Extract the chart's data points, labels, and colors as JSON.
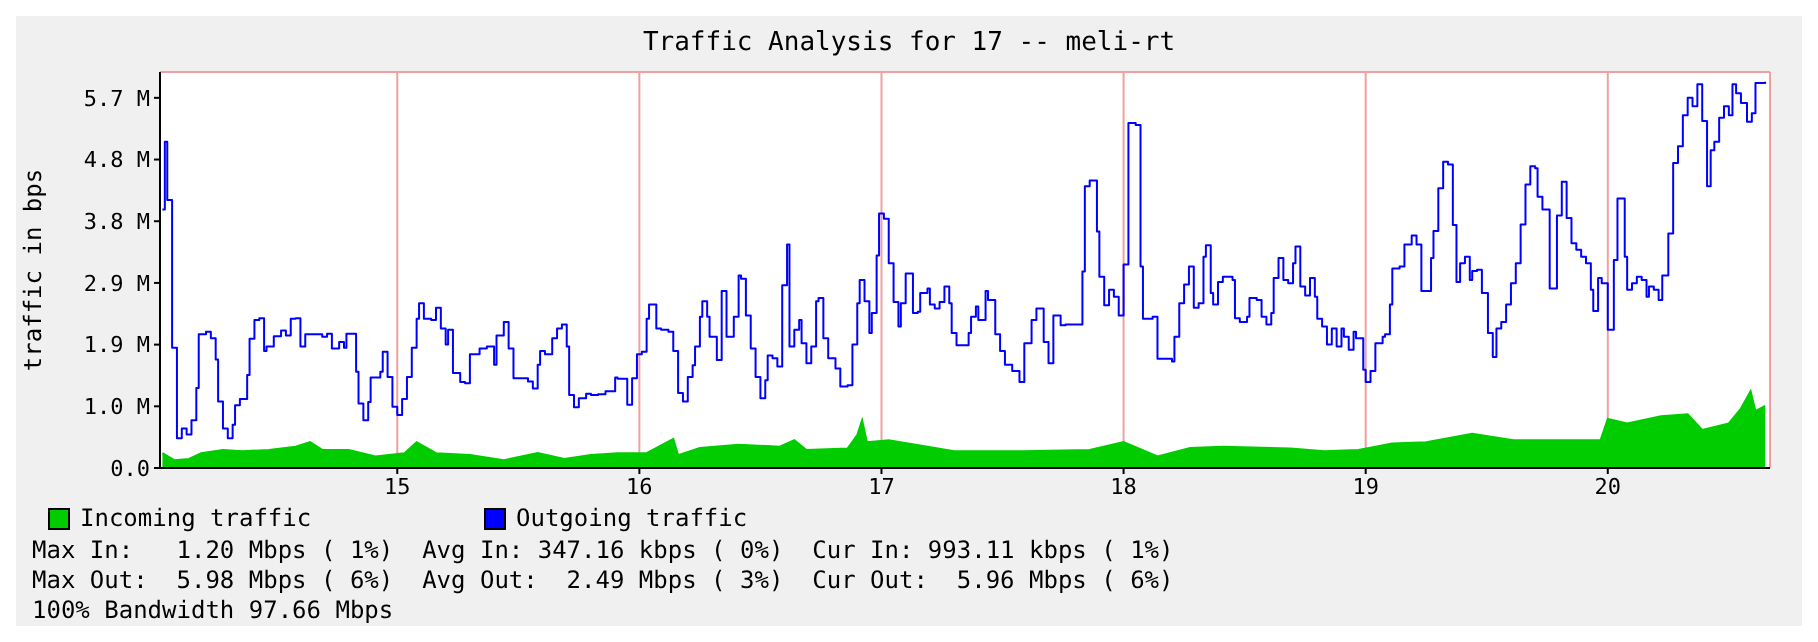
{
  "chart_data": {
    "type": "line",
    "title": "Traffic Analysis for 17 -- meli-rt",
    "ylabel": "traffic in bps",
    "xlim": [
      14.02,
      20.67
    ],
    "xticks": [
      15,
      16,
      17,
      18,
      19,
      20
    ],
    "ylim": [
      0,
      6.13
    ],
    "yticks": [
      {
        "value": 0,
        "label": "0.0"
      },
      {
        "value": 0.955,
        "label": "1.0 M"
      },
      {
        "value": 1.91,
        "label": "1.9 M"
      },
      {
        "value": 2.865,
        "label": "2.9 M"
      },
      {
        "value": 3.82,
        "label": "3.8 M"
      },
      {
        "value": 4.775,
        "label": "4.8 M"
      },
      {
        "value": 5.73,
        "label": "5.7 M"
      }
    ],
    "grid": true,
    "legend": "bottom",
    "marker": "none",
    "series": [
      {
        "name": "Incoming traffic",
        "type": "area",
        "color": "#00cc00",
        "x": [
          14.03,
          14.08,
          14.14,
          14.19,
          14.28,
          14.36,
          14.47,
          14.58,
          14.64,
          14.69,
          14.8,
          14.91,
          15.03,
          15.08,
          15.16,
          15.3,
          15.44,
          15.58,
          15.69,
          15.8,
          15.91,
          16.03,
          16.14,
          16.16,
          16.25,
          16.41,
          16.58,
          16.64,
          16.69,
          16.86,
          16.9,
          16.92,
          16.94,
          17.03,
          17.19,
          17.3,
          17.58,
          17.86,
          18,
          18.14,
          18.275,
          18.41,
          18.69,
          18.83,
          18.97,
          19.11,
          19.25,
          19.44,
          19.61,
          19.8,
          19.97,
          20,
          20.08,
          20.22,
          20.33,
          20.39,
          20.5,
          20.55,
          20.59,
          20.61,
          20.65
        ],
        "values": [
          0.23,
          0.12,
          0.14,
          0.23,
          0.28,
          0.26,
          0.28,
          0.33,
          0.4,
          0.28,
          0.28,
          0.18,
          0.23,
          0.4,
          0.23,
          0.2,
          0.12,
          0.23,
          0.14,
          0.2,
          0.23,
          0.23,
          0.45,
          0.2,
          0.31,
          0.36,
          0.33,
          0.43,
          0.28,
          0.3,
          0.51,
          0.74,
          0.4,
          0.43,
          0.33,
          0.26,
          0.26,
          0.28,
          0.4,
          0.18,
          0.31,
          0.33,
          0.3,
          0.26,
          0.28,
          0.38,
          0.4,
          0.53,
          0.43,
          0.43,
          0.43,
          0.76,
          0.69,
          0.8,
          0.83,
          0.59,
          0.69,
          0.92,
          1.19,
          0.88,
          0.96
        ]
      },
      {
        "name": "Outgoing traffic",
        "type": "step",
        "color": "#0000ff",
        "x": [
          14.03,
          14.04,
          14.05,
          14.07,
          14.09,
          14.11,
          14.13,
          14.15,
          14.17,
          14.18,
          14.21,
          14.23,
          14.25,
          14.26,
          14.28,
          14.3,
          14.32,
          14.33,
          14.35,
          14.38,
          14.39,
          14.41,
          14.43,
          14.45,
          14.46,
          14.49,
          14.52,
          14.54,
          14.56,
          14.58,
          14.6,
          14.62,
          14.66,
          14.69,
          14.71,
          14.73,
          14.76,
          14.78,
          14.79,
          14.82,
          14.83,
          14.84,
          14.86,
          14.88,
          14.89,
          14.93,
          14.94,
          14.96,
          14.98,
          15,
          15.02,
          15.04,
          15.06,
          15.08,
          15.09,
          15.11,
          15.14,
          15.16,
          15.18,
          15.2,
          15.21,
          15.23,
          15.26,
          15.28,
          15.3,
          15.34,
          15.37,
          15.4,
          15.41,
          15.44,
          15.46,
          15.48,
          15.51,
          15.54,
          15.56,
          15.58,
          15.59,
          15.61,
          15.64,
          15.66,
          15.68,
          15.7,
          15.71,
          15.73,
          15.75,
          15.78,
          15.8,
          15.83,
          15.86,
          15.9,
          15.91,
          15.95,
          15.97,
          15.99,
          16.01,
          16.03,
          16.04,
          16.07,
          16.09,
          16.12,
          16.14,
          16.16,
          16.18,
          16.2,
          16.22,
          16.23,
          16.25,
          16.26,
          16.28,
          16.29,
          16.32,
          16.34,
          16.36,
          16.39,
          16.41,
          16.42,
          16.44,
          16.46,
          16.48,
          16.5,
          16.52,
          16.53,
          16.55,
          16.57,
          16.59,
          16.61,
          16.62,
          16.64,
          16.66,
          16.67,
          16.69,
          16.71,
          16.73,
          16.74,
          16.76,
          16.78,
          16.81,
          16.83,
          16.86,
          16.88,
          16.9,
          16.91,
          16.93,
          16.95,
          16.96,
          16.98,
          16.99,
          17.01,
          17.03,
          17.05,
          17.07,
          17.08,
          17.1,
          17.13,
          17.15,
          17.16,
          17.19,
          17.2,
          17.22,
          17.24,
          17.26,
          17.28,
          17.29,
          17.31,
          17.34,
          17.36,
          17.37,
          17.39,
          17.4,
          17.43,
          17.44,
          17.47,
          17.49,
          17.51,
          17.54,
          17.57,
          17.59,
          17.62,
          17.64,
          17.67,
          17.69,
          17.71,
          17.74,
          17.76,
          17.82,
          17.83,
          17.84,
          17.86,
          17.89,
          17.9,
          17.92,
          17.94,
          17.96,
          17.98,
          18,
          18.02,
          18.05,
          18.07,
          18.08,
          18.12,
          18.14,
          18.2,
          18.21,
          18.23,
          18.25,
          18.27,
          18.29,
          18.31,
          18.33,
          18.34,
          18.36,
          18.37,
          18.39,
          18.41,
          18.45,
          18.46,
          18.48,
          18.51,
          18.52,
          18.55,
          18.57,
          18.59,
          18.61,
          18.62,
          18.64,
          18.66,
          18.68,
          18.7,
          18.71,
          18.73,
          18.75,
          18.77,
          18.79,
          18.8,
          18.82,
          18.84,
          18.86,
          18.88,
          18.9,
          18.91,
          18.93,
          18.95,
          18.96,
          18.99,
          19,
          19.02,
          19.04,
          19.07,
          19.08,
          19.1,
          19.11,
          19.14,
          19.16,
          19.19,
          19.21,
          19.23,
          19.25,
          19.27,
          19.28,
          19.3,
          19.32,
          19.34,
          19.36,
          19.375,
          19.39,
          19.41,
          19.43,
          19.44,
          19.46,
          19.48,
          19.505,
          19.525,
          19.54,
          19.56,
          19.58,
          19.6,
          19.62,
          19.64,
          19.66,
          19.68,
          19.7,
          19.71,
          19.73,
          19.76,
          19.79,
          19.81,
          19.83,
          19.85,
          19.87,
          19.89,
          19.91,
          19.93,
          19.94,
          19.96,
          19.975,
          20,
          20.01,
          20.025,
          20.04,
          20.07,
          20.08,
          20.1,
          20.12,
          20.14,
          20.16,
          20.17,
          20.19,
          20.21,
          20.225,
          20.25,
          20.27,
          20.29,
          20.31,
          20.33,
          20.35,
          20.37,
          20.39,
          20.41,
          20.425,
          20.44,
          20.46,
          20.48,
          20.5,
          20.515,
          20.53,
          20.55,
          20.575,
          20.595,
          20.61,
          20.65
        ],
        "values": [
          4,
          5.05,
          4.15,
          1.86,
          0.46,
          0.61,
          0.52,
          0.74,
          1.24,
          2.07,
          2.11,
          2.01,
          1.68,
          1.03,
          0.61,
          0.46,
          0.67,
          0.97,
          1.07,
          1.44,
          2,
          2.29,
          2.32,
          1.81,
          1.88,
          2.04,
          2.13,
          2.05,
          2.31,
          2.32,
          1.88,
          2.07,
          2.07,
          2.03,
          2.08,
          1.85,
          1.95,
          1.86,
          2.08,
          2.08,
          1.49,
          1,
          0.74,
          1.02,
          1.4,
          1.49,
          1.8,
          1.41,
          0.95,
          0.82,
          1.07,
          1.41,
          1.86,
          2.31,
          2.55,
          2.31,
          2.29,
          2.48,
          2.16,
          1.91,
          2.14,
          1.47,
          1.33,
          1.31,
          1.76,
          1.85,
          1.88,
          1.6,
          2.05,
          2.26,
          1.85,
          1.39,
          1.39,
          1.34,
          1.23,
          1.6,
          1.81,
          1.76,
          2.01,
          2.16,
          2.22,
          1.88,
          1.13,
          0.94,
          1.08,
          1.15,
          1.13,
          1.14,
          1.19,
          1.4,
          1.38,
          0.98,
          1.39,
          1.76,
          1.8,
          2.31,
          2.53,
          2.16,
          2.14,
          2.11,
          1.81,
          1.16,
          1.03,
          1.41,
          1.59,
          1.88,
          2.34,
          2.58,
          2.34,
          2.03,
          1.67,
          2.74,
          2.03,
          2.34,
          2.98,
          2.93,
          2.36,
          1.85,
          1.41,
          1.08,
          1.36,
          1.74,
          1.7,
          1.57,
          2.83,
          3.46,
          1.88,
          2.14,
          2.29,
          1.93,
          1.62,
          1.88,
          2.58,
          2.63,
          2.01,
          1.7,
          1.54,
          1.26,
          1.28,
          1.91,
          2.55,
          2.91,
          2.58,
          2.09,
          2.4,
          3.29,
          3.94,
          3.86,
          3.17,
          2.57,
          2.19,
          2.55,
          3.01,
          2.4,
          2.42,
          2.71,
          2.78,
          2.53,
          2.47,
          2.57,
          2.81,
          2.55,
          2.09,
          1.9,
          1.9,
          2.09,
          2.34,
          2.5,
          2.29,
          2.74,
          2.6,
          2.07,
          1.81,
          1.6,
          1.5,
          1.33,
          1.93,
          2.29,
          2.47,
          1.95,
          1.62,
          2.36,
          2.21,
          2.22,
          2.22,
          3.04,
          4.36,
          4.45,
          3.66,
          2.96,
          2.52,
          2.76,
          2.65,
          2.36,
          3.15,
          5.34,
          5.31,
          3.12,
          2.31,
          2.34,
          1.69,
          1.65,
          2.03,
          2.55,
          2.84,
          3.12,
          2.48,
          2.55,
          3.27,
          3.45,
          2.71,
          2.53,
          2.88,
          2.96,
          2.91,
          2.32,
          2.26,
          2.34,
          2.63,
          2.6,
          2.34,
          2.22,
          2.4,
          2.94,
          3.25,
          2.91,
          2.86,
          3.17,
          3.43,
          2.81,
          2.67,
          2.94,
          2.65,
          2.31,
          2.19,
          1.91,
          2.16,
          1.88,
          2.16,
          2.03,
          1.83,
          2.11,
          2.01,
          1.52,
          1.33,
          1.5,
          1.93,
          2.03,
          2.07,
          2.53,
          3.09,
          3.12,
          3.46,
          3.6,
          3.46,
          2.74,
          2.74,
          3.25,
          3.67,
          4.33,
          4.74,
          4.7,
          3.76,
          2.88,
          3.17,
          3.27,
          2.91,
          3.05,
          3.07,
          2.71,
          2.09,
          1.72,
          2.16,
          2.26,
          2.53,
          2.86,
          3.17,
          3.77,
          4.39,
          4.67,
          4.64,
          4.2,
          4,
          2.78,
          3.91,
          4.43,
          3.87,
          3.48,
          3.38,
          3.27,
          3.17,
          2.76,
          2.43,
          2.94,
          2.86,
          2.14,
          2.14,
          3.22,
          4.17,
          3.27,
          2.76,
          2.86,
          2.96,
          2.91,
          2.65,
          2.81,
          2.76,
          2.6,
          2.98,
          3.63,
          4.72,
          4.98,
          5.46,
          5.73,
          5.6,
          5.94,
          5.37,
          4.36,
          4.92,
          5.05,
          5.42,
          5.6,
          5.46,
          5.94,
          5.8,
          5.65,
          5.36,
          5.49,
          5.96,
          5.98
        ]
      }
    ],
    "annotations": [
      "Max In:   1.20 Mbps ( 1%)  Avg In: 347.16 kbps ( 0%)  Cur In: 993.11 kbps ( 1%)",
      "Max Out:  5.98 Mbps ( 6%)  Avg Out:  2.49 Mbps ( 3%)  Cur Out:  5.96 Mbps ( 6%)",
      "100% Bandwidth 97.66 Mbps"
    ]
  }
}
